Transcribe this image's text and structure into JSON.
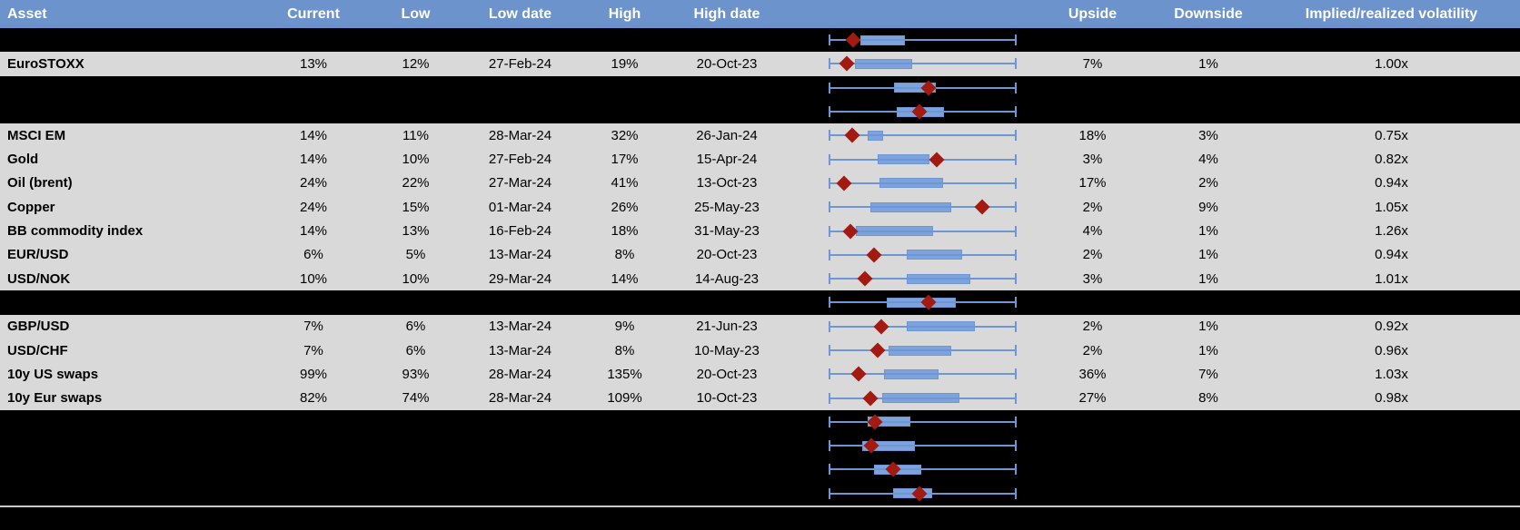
{
  "colors": {
    "header_bg": "#6D93CC",
    "header_text": "#FFFFFF",
    "data_row_bg": "#D9D9D9",
    "hidden_row_bg": "#000000",
    "whisker_blue": "#6E96D4",
    "box_fill_blue": "#7CA3DC",
    "marker_dark_red": "#A31A10",
    "bottom_divider_gray": "#C9C9C9"
  },
  "header": {
    "columns": {
      "asset": "Asset",
      "current": "Current",
      "low": "Low",
      "low_date": "Low date",
      "high": "High",
      "high_date": "High date",
      "chart": "",
      "upside": "Upside",
      "downside": "Downside",
      "impl": "Implied/realized volatility"
    }
  },
  "chart_note": "Box plots: whiskers are normalized min-max (identical span every row); values below are fractions of that span. 'current' is the red diamond position.",
  "rows": [
    {
      "type": "hidden",
      "box": {
        "q1": 0.166,
        "q3": 0.405,
        "current": 0.127
      }
    },
    {
      "type": "data",
      "asset": "EuroSTOXX",
      "current": "13%",
      "low": "12%",
      "low_date": "27-Feb-24",
      "high": "19%",
      "high_date": "20-Oct-23",
      "upside": "7%",
      "downside": "1%",
      "impl": "1.00x",
      "box": {
        "q1": 0.137,
        "q3": 0.444,
        "current": 0.093
      }
    },
    {
      "type": "hidden",
      "box": {
        "q1": 0.346,
        "q3": 0.571,
        "current": 0.532
      }
    },
    {
      "type": "hidden",
      "box": {
        "q1": 0.361,
        "q3": 0.615,
        "current": 0.483
      }
    },
    {
      "type": "data",
      "asset": "MSCI EM",
      "current": "14%",
      "low": "11%",
      "low_date": "28-Mar-24",
      "high": "32%",
      "high_date": "26-Jan-24",
      "upside": "18%",
      "downside": "3%",
      "impl": "0.75x",
      "box": {
        "q1": 0.205,
        "q3": 0.288,
        "current": 0.122
      }
    },
    {
      "type": "data",
      "asset": "Gold",
      "current": "14%",
      "low": "10%",
      "low_date": "27-Feb-24",
      "high": "17%",
      "high_date": "15-Apr-24",
      "upside": "3%",
      "downside": "4%",
      "impl": "0.82x",
      "box": {
        "q1": 0.259,
        "q3": 0.537,
        "current": 0.574
      }
    },
    {
      "type": "data",
      "asset": "Oil (brent)",
      "current": "24%",
      "low": "22%",
      "low_date": "27-Mar-24",
      "high": "41%",
      "high_date": "13-Oct-23",
      "upside": "17%",
      "downside": "2%",
      "impl": "0.94x",
      "box": {
        "q1": 0.268,
        "q3": 0.61,
        "current": 0.078
      }
    },
    {
      "type": "data",
      "asset": "Copper",
      "current": "24%",
      "low": "15%",
      "low_date": "01-Mar-24",
      "high": "26%",
      "high_date": "25-May-23",
      "upside": "2%",
      "downside": "9%",
      "impl": "1.05x",
      "box": {
        "q1": 0.22,
        "q3": 0.654,
        "current": 0.82
      }
    },
    {
      "type": "data",
      "asset": "BB commodity index",
      "current": "14%",
      "low": "13%",
      "low_date": "16-Feb-24",
      "high": "18%",
      "high_date": "31-May-23",
      "upside": "4%",
      "downside": "1%",
      "impl": "1.26x",
      "box": {
        "q1": 0.141,
        "q3": 0.556,
        "current": 0.112
      }
    },
    {
      "type": "data",
      "asset": "EUR/USD",
      "current": "6%",
      "low": "5%",
      "low_date": "13-Mar-24",
      "high": "8%",
      "high_date": "20-Oct-23",
      "upside": "2%",
      "downside": "1%",
      "impl": "0.94x",
      "box": {
        "q1": 0.415,
        "q3": 0.712,
        "current": 0.239
      }
    },
    {
      "type": "data",
      "asset": "USD/NOK",
      "current": "10%",
      "low": "10%",
      "low_date": "29-Mar-24",
      "high": "14%",
      "high_date": "14-Aug-23",
      "upside": "3%",
      "downside": "1%",
      "impl": "1.01x",
      "box": {
        "q1": 0.415,
        "q3": 0.756,
        "current": 0.19
      }
    },
    {
      "type": "hidden",
      "box": {
        "q1": 0.307,
        "q3": 0.678,
        "current": 0.532
      }
    },
    {
      "type": "data",
      "asset": "GBP/USD",
      "current": "7%",
      "low": "6%",
      "low_date": "13-Mar-24",
      "high": "9%",
      "high_date": "21-Jun-23",
      "upside": "2%",
      "downside": "1%",
      "impl": "0.92x",
      "box": {
        "q1": 0.415,
        "q3": 0.78,
        "current": 0.278
      }
    },
    {
      "type": "data",
      "asset": "USD/CHF",
      "current": "7%",
      "low": "6%",
      "low_date": "13-Mar-24",
      "high": "8%",
      "high_date": "10-May-23",
      "upside": "2%",
      "downside": "1%",
      "impl": "0.96x",
      "box": {
        "q1": 0.317,
        "q3": 0.654,
        "current": 0.259
      }
    },
    {
      "type": "data",
      "asset": "10y US swaps",
      "current": "99%",
      "low": "93%",
      "low_date": "28-Mar-24",
      "high": "135%",
      "high_date": "20-Oct-23",
      "upside": "36%",
      "downside": "7%",
      "impl": "1.03x",
      "box": {
        "q1": 0.293,
        "q3": 0.585,
        "current": 0.156
      }
    },
    {
      "type": "data",
      "asset": "10y Eur swaps",
      "current": "82%",
      "low": "74%",
      "low_date": "28-Mar-24",
      "high": "109%",
      "high_date": "10-Oct-23",
      "upside": "27%",
      "downside": "8%",
      "impl": "0.98x",
      "box": {
        "q1": 0.283,
        "q3": 0.698,
        "current": 0.22
      }
    },
    {
      "type": "hidden",
      "box": {
        "q1": 0.205,
        "q3": 0.434,
        "current": 0.244
      }
    },
    {
      "type": "hidden",
      "box": {
        "q1": 0.176,
        "q3": 0.459,
        "current": 0.224
      }
    },
    {
      "type": "hidden",
      "box": {
        "q1": 0.239,
        "q3": 0.493,
        "current": 0.341
      }
    },
    {
      "type": "hidden",
      "box": {
        "q1": 0.341,
        "q3": 0.551,
        "current": 0.483
      }
    }
  ]
}
